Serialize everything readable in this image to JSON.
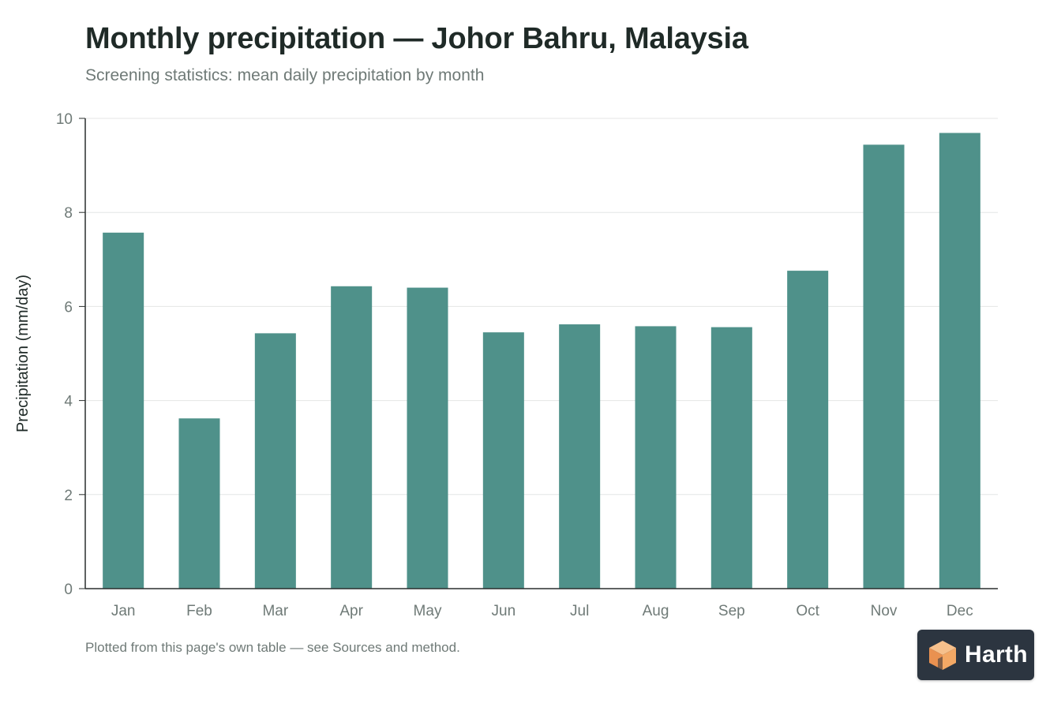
{
  "header": {
    "title": "Monthly precipitation — Johor Bahru, Malaysia",
    "subtitle": "Screening statistics: mean daily precipitation by month"
  },
  "footer": {
    "note": "Plotted from this page's own table — see Sources and method."
  },
  "badge": {
    "label": "Harth",
    "icon": "harth-logo-icon"
  },
  "colors": {
    "bar": "#4f918a",
    "axis": "#2a2f2e",
    "grid": "#e4e6e5",
    "tick_text": "#6f7a77",
    "logo_orange": "#f0a060"
  },
  "chart_data": {
    "type": "bar",
    "title": "Monthly precipitation — Johor Bahru, Malaysia",
    "subtitle": "Screening statistics: mean daily precipitation by month",
    "xlabel": "",
    "ylabel": "Precipitation (mm/day)",
    "categories": [
      "Jan",
      "Feb",
      "Mar",
      "Apr",
      "May",
      "Jun",
      "Jul",
      "Aug",
      "Sep",
      "Oct",
      "Nov",
      "Dec"
    ],
    "values": [
      7.57,
      3.62,
      5.43,
      6.43,
      6.4,
      5.45,
      5.62,
      5.58,
      5.56,
      6.76,
      9.44,
      9.69
    ],
    "ylim": [
      0,
      10
    ],
    "yticks": [
      0,
      2,
      4,
      6,
      8,
      10
    ],
    "grid": true,
    "legend": "none"
  }
}
